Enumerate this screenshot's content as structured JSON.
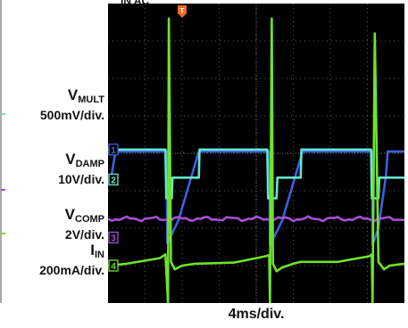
{
  "labels": {
    "vmult": {
      "sig": "V",
      "sub": "MULT",
      "scale": "500mV/div."
    },
    "vdamp": {
      "sig": "V",
      "sub": "DAMP",
      "scale": "10V/div."
    },
    "vcomp": {
      "sig": "V",
      "sub": "COMP",
      "scale": "2V/div."
    },
    "iin": {
      "sig": "I",
      "sub": "IN",
      "scale": "200mA/div."
    }
  },
  "top_fragment": "IN          AC",
  "chart_data": {
    "type": "line",
    "title": "",
    "xlabel": "4ms/div.",
    "ylabel": "",
    "x_divisions": 8,
    "y_divisions": 8,
    "grid": true,
    "background": "#000000",
    "channels": [
      {
        "id": "1",
        "signal": "VMULT",
        "scale": "500mV/div.",
        "color": "#3f5fe0",
        "ground_div": 3.9
      },
      {
        "id": "2",
        "signal": "VDAMP",
        "scale": "10V/div.",
        "color": "#63e6cf",
        "ground_div": 4.7
      },
      {
        "id": "3",
        "signal": "VCOMP",
        "scale": "2V/div.",
        "color": "#a64fd6",
        "ground_div": 6.25
      },
      {
        "id": "4",
        "signal": "IIN",
        "scale": "200mA/div.",
        "color": "#6fe32c",
        "ground_div": 7.0
      }
    ],
    "trigger_marker": {
      "label": "T",
      "color": "#f06a20",
      "x_div": 2.0
    },
    "series": [
      {
        "channel": "1",
        "x": [
          0,
          0.08,
          0.2,
          0.6,
          1.58,
          1.6,
          1.9,
          2.45,
          2.6,
          4.35,
          4.37,
          4.7,
          5.25,
          5.4,
          7.12,
          7.14,
          7.3,
          7.5,
          7.55,
          8
        ],
        "y": [
          4.8,
          4.7,
          3.95,
          3.95,
          3.95,
          6.4,
          5.8,
          3.95,
          3.95,
          3.95,
          6.45,
          5.8,
          3.95,
          3.95,
          3.95,
          6.45,
          6.0,
          4.6,
          3.95,
          3.95
        ]
      },
      {
        "channel": "2",
        "x": [
          0,
          0.6,
          0.62,
          1.55,
          1.57,
          1.72,
          1.74,
          2.45,
          2.47,
          3.45,
          3.47,
          4.3,
          4.32,
          4.55,
          4.57,
          5.2,
          5.22,
          6.2,
          6.22,
          7.1,
          7.12,
          7.3,
          7.32,
          8
        ],
        "y": [
          3.9,
          3.9,
          3.9,
          3.9,
          5.2,
          5.2,
          4.65,
          4.65,
          3.9,
          3.9,
          3.9,
          3.9,
          5.2,
          5.2,
          4.65,
          4.65,
          3.9,
          3.9,
          3.9,
          3.9,
          5.2,
          5.2,
          4.65,
          4.65
        ]
      },
      {
        "channel": "3",
        "x": [
          0,
          8
        ],
        "y": [
          5.75,
          5.75
        ],
        "ripple": 0.04
      },
      {
        "channel": "4",
        "x": [
          0,
          0.5,
          1.4,
          1.55,
          1.62,
          1.64,
          1.7,
          1.8,
          2.0,
          2.35,
          3.4,
          4.25,
          4.35,
          4.37,
          4.42,
          4.45,
          4.55,
          4.7,
          5.0,
          5.2,
          6.2,
          7.05,
          7.12,
          7.14,
          7.2,
          7.3,
          7.45,
          7.6,
          8
        ],
        "y": [
          7.0,
          6.95,
          6.8,
          6.7,
          8.0,
          0.4,
          6.9,
          7.1,
          7.0,
          6.95,
          6.92,
          6.75,
          6.72,
          8.0,
          0.4,
          6.95,
          7.15,
          7.05,
          6.95,
          6.9,
          6.9,
          6.75,
          6.7,
          8.0,
          0.8,
          6.9,
          7.1,
          7.0,
          6.95
        ]
      }
    ]
  }
}
